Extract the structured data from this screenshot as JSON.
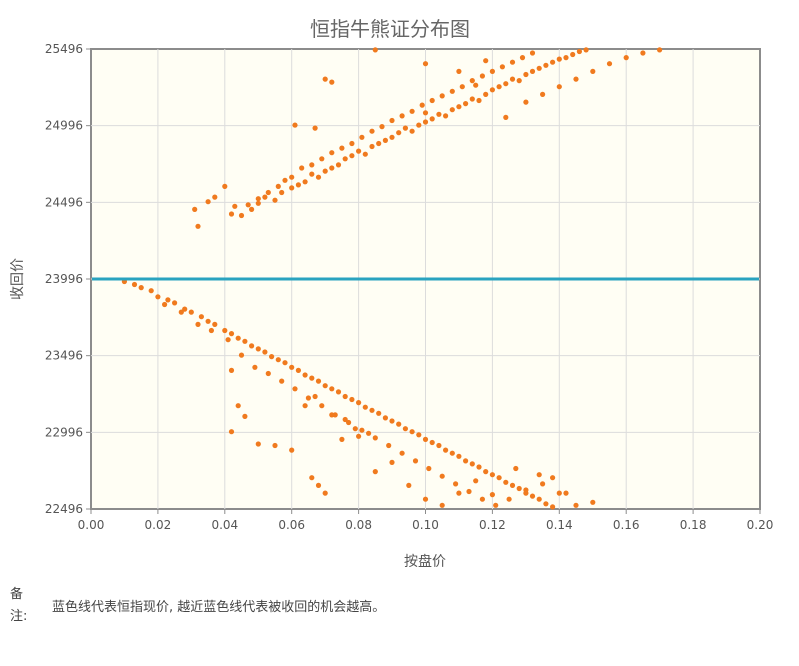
{
  "chart_data": {
    "type": "scatter",
    "title": "恒指牛熊证分布图",
    "xlabel": "按盘价",
    "ylabel": "收回价",
    "xlim": [
      0.0,
      0.2
    ],
    "ylim": [
      22496,
      25496
    ],
    "x_ticks": [
      "0.00",
      "0.02",
      "0.04",
      "0.06",
      "0.08",
      "0.10",
      "0.12",
      "0.14",
      "0.16",
      "0.18",
      "0.20"
    ],
    "y_ticks": [
      "22496",
      "22996",
      "23496",
      "23996",
      "24496",
      "24996",
      "25496"
    ],
    "grid": true,
    "reference_line": {
      "y": 23996,
      "color": "#29a3bf"
    },
    "series_color": "#f07a1e",
    "series": [
      {
        "points": [
          [
            0.042,
            24420
          ],
          [
            0.045,
            24410
          ],
          [
            0.048,
            24450
          ],
          [
            0.05,
            24490
          ],
          [
            0.052,
            24530
          ],
          [
            0.055,
            24510
          ],
          [
            0.057,
            24560
          ],
          [
            0.06,
            24590
          ],
          [
            0.062,
            24610
          ],
          [
            0.064,
            24630
          ],
          [
            0.066,
            24680
          ],
          [
            0.068,
            24660
          ],
          [
            0.07,
            24700
          ],
          [
            0.072,
            24720
          ],
          [
            0.074,
            24740
          ],
          [
            0.076,
            24780
          ],
          [
            0.078,
            24800
          ],
          [
            0.08,
            24830
          ],
          [
            0.082,
            24810
          ],
          [
            0.084,
            24860
          ],
          [
            0.086,
            24880
          ],
          [
            0.088,
            24900
          ],
          [
            0.09,
            24920
          ],
          [
            0.092,
            24950
          ],
          [
            0.094,
            24980
          ],
          [
            0.096,
            24960
          ],
          [
            0.098,
            25000
          ],
          [
            0.1,
            25020
          ],
          [
            0.102,
            25040
          ],
          [
            0.104,
            25070
          ],
          [
            0.106,
            25060
          ],
          [
            0.108,
            25100
          ],
          [
            0.11,
            25120
          ],
          [
            0.112,
            25140
          ],
          [
            0.114,
            25170
          ],
          [
            0.116,
            25160
          ],
          [
            0.118,
            25200
          ],
          [
            0.12,
            25230
          ],
          [
            0.122,
            25250
          ],
          [
            0.124,
            25270
          ],
          [
            0.126,
            25300
          ],
          [
            0.128,
            25290
          ],
          [
            0.13,
            25330
          ],
          [
            0.132,
            25350
          ],
          [
            0.134,
            25370
          ],
          [
            0.136,
            25390
          ],
          [
            0.138,
            25410
          ],
          [
            0.14,
            25430
          ],
          [
            0.142,
            25440
          ],
          [
            0.144,
            25460
          ],
          [
            0.146,
            25480
          ],
          [
            0.148,
            25490
          ],
          [
            0.031,
            24450
          ],
          [
            0.032,
            24340
          ],
          [
            0.035,
            24500
          ],
          [
            0.037,
            24530
          ],
          [
            0.04,
            24600
          ],
          [
            0.043,
            24470
          ],
          [
            0.047,
            24480
          ],
          [
            0.05,
            24520
          ],
          [
            0.053,
            24560
          ],
          [
            0.056,
            24600
          ],
          [
            0.058,
            24640
          ],
          [
            0.06,
            24660
          ],
          [
            0.063,
            24720
          ],
          [
            0.066,
            24740
          ],
          [
            0.069,
            24780
          ],
          [
            0.072,
            24820
          ],
          [
            0.075,
            24850
          ],
          [
            0.078,
            24880
          ],
          [
            0.081,
            24920
          ],
          [
            0.084,
            24960
          ],
          [
            0.087,
            24990
          ],
          [
            0.09,
            25030
          ],
          [
            0.093,
            25060
          ],
          [
            0.096,
            25090
          ],
          [
            0.099,
            25130
          ],
          [
            0.102,
            25160
          ],
          [
            0.105,
            25190
          ],
          [
            0.108,
            25220
          ],
          [
            0.111,
            25250
          ],
          [
            0.114,
            25290
          ],
          [
            0.117,
            25320
          ],
          [
            0.12,
            25350
          ],
          [
            0.123,
            25380
          ],
          [
            0.126,
            25410
          ],
          [
            0.129,
            25440
          ],
          [
            0.132,
            25470
          ],
          [
            0.061,
            25000
          ],
          [
            0.067,
            24980
          ],
          [
            0.07,
            25300
          ],
          [
            0.072,
            25280
          ],
          [
            0.085,
            25490
          ],
          [
            0.1,
            25400
          ],
          [
            0.11,
            25350
          ],
          [
            0.115,
            25260
          ],
          [
            0.118,
            25420
          ],
          [
            0.1,
            25080
          ],
          [
            0.124,
            25050
          ],
          [
            0.13,
            25150
          ],
          [
            0.135,
            25200
          ],
          [
            0.14,
            25250
          ],
          [
            0.145,
            25300
          ],
          [
            0.15,
            25350
          ],
          [
            0.155,
            25400
          ],
          [
            0.16,
            25440
          ],
          [
            0.165,
            25470
          ],
          [
            0.17,
            25490
          ],
          [
            0.01,
            23980
          ],
          [
            0.013,
            23960
          ],
          [
            0.015,
            23940
          ],
          [
            0.018,
            23920
          ],
          [
            0.02,
            23880
          ],
          [
            0.023,
            23860
          ],
          [
            0.025,
            23840
          ],
          [
            0.028,
            23800
          ],
          [
            0.03,
            23780
          ],
          [
            0.033,
            23750
          ],
          [
            0.035,
            23720
          ],
          [
            0.037,
            23700
          ],
          [
            0.04,
            23660
          ],
          [
            0.042,
            23640
          ],
          [
            0.044,
            23610
          ],
          [
            0.046,
            23590
          ],
          [
            0.048,
            23560
          ],
          [
            0.05,
            23540
          ],
          [
            0.052,
            23520
          ],
          [
            0.054,
            23490
          ],
          [
            0.056,
            23470
          ],
          [
            0.058,
            23450
          ],
          [
            0.06,
            23420
          ],
          [
            0.062,
            23400
          ],
          [
            0.064,
            23370
          ],
          [
            0.066,
            23350
          ],
          [
            0.068,
            23330
          ],
          [
            0.07,
            23300
          ],
          [
            0.072,
            23280
          ],
          [
            0.074,
            23260
          ],
          [
            0.076,
            23230
          ],
          [
            0.078,
            23210
          ],
          [
            0.08,
            23190
          ],
          [
            0.082,
            23160
          ],
          [
            0.084,
            23140
          ],
          [
            0.086,
            23120
          ],
          [
            0.088,
            23090
          ],
          [
            0.09,
            23070
          ],
          [
            0.092,
            23050
          ],
          [
            0.094,
            23020
          ],
          [
            0.096,
            23000
          ],
          [
            0.098,
            22980
          ],
          [
            0.1,
            22950
          ],
          [
            0.102,
            22930
          ],
          [
            0.104,
            22910
          ],
          [
            0.106,
            22880
          ],
          [
            0.108,
            22860
          ],
          [
            0.11,
            22840
          ],
          [
            0.112,
            22810
          ],
          [
            0.114,
            22790
          ],
          [
            0.116,
            22770
          ],
          [
            0.118,
            22740
          ],
          [
            0.12,
            22720
          ],
          [
            0.122,
            22700
          ],
          [
            0.124,
            22670
          ],
          [
            0.126,
            22650
          ],
          [
            0.128,
            22630
          ],
          [
            0.13,
            22600
          ],
          [
            0.132,
            22580
          ],
          [
            0.134,
            22560
          ],
          [
            0.136,
            22530
          ],
          [
            0.138,
            22510
          ],
          [
            0.022,
            23830
          ],
          [
            0.027,
            23780
          ],
          [
            0.032,
            23700
          ],
          [
            0.036,
            23660
          ],
          [
            0.041,
            23600
          ],
          [
            0.045,
            23500
          ],
          [
            0.049,
            23420
          ],
          [
            0.053,
            23380
          ],
          [
            0.057,
            23330
          ],
          [
            0.061,
            23280
          ],
          [
            0.065,
            23220
          ],
          [
            0.069,
            23170
          ],
          [
            0.073,
            23110
          ],
          [
            0.077,
            23060
          ],
          [
            0.081,
            23010
          ],
          [
            0.085,
            22960
          ],
          [
            0.089,
            22910
          ],
          [
            0.093,
            22860
          ],
          [
            0.097,
            22810
          ],
          [
            0.101,
            22760
          ],
          [
            0.105,
            22710
          ],
          [
            0.109,
            22660
          ],
          [
            0.113,
            22610
          ],
          [
            0.117,
            22560
          ],
          [
            0.121,
            22520
          ],
          [
            0.042,
            23400
          ],
          [
            0.044,
            23170
          ],
          [
            0.046,
            23100
          ],
          [
            0.042,
            23000
          ],
          [
            0.05,
            22920
          ],
          [
            0.055,
            22910
          ],
          [
            0.06,
            22880
          ],
          [
            0.066,
            22700
          ],
          [
            0.068,
            22650
          ],
          [
            0.07,
            22600
          ],
          [
            0.075,
            22950
          ],
          [
            0.08,
            22970
          ],
          [
            0.085,
            22740
          ],
          [
            0.09,
            22800
          ],
          [
            0.095,
            22650
          ],
          [
            0.1,
            22560
          ],
          [
            0.105,
            22520
          ],
          [
            0.11,
            22600
          ],
          [
            0.115,
            22680
          ],
          [
            0.12,
            22590
          ],
          [
            0.125,
            22560
          ],
          [
            0.13,
            22620
          ],
          [
            0.135,
            22660
          ],
          [
            0.14,
            22600
          ],
          [
            0.145,
            22520
          ],
          [
            0.127,
            22760
          ],
          [
            0.134,
            22720
          ],
          [
            0.138,
            22700
          ],
          [
            0.142,
            22600
          ],
          [
            0.15,
            22540
          ],
          [
            0.064,
            23170
          ],
          [
            0.067,
            23230
          ],
          [
            0.072,
            23110
          ],
          [
            0.076,
            23080
          ],
          [
            0.079,
            23020
          ],
          [
            0.083,
            22990
          ]
        ]
      }
    ]
  },
  "note": {
    "label": "备注:",
    "text": "蓝色线代表恒指现价, 越近蓝色线代表被收回的机会越高。"
  }
}
